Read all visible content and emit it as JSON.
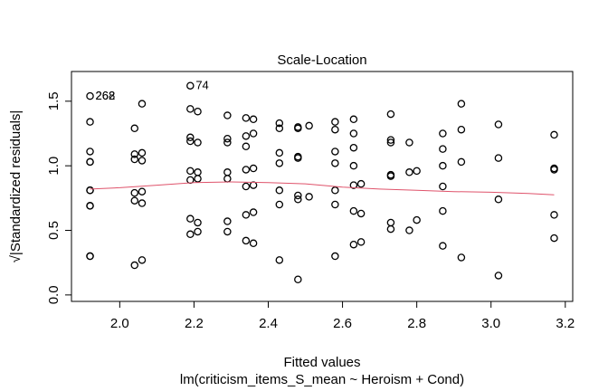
{
  "chart_data": {
    "type": "scatter",
    "title": "Scale-Location",
    "xlabel": "Fitted values",
    "subtitle": "lm(criticism_items_S_mean ~ Heroism + Cond)",
    "ylabel": "√|Standardized residuals|",
    "xlim": [
      1.87,
      3.22
    ],
    "ylim": [
      -0.05,
      1.73
    ],
    "x_ticks": [
      2.0,
      2.2,
      2.4,
      2.6,
      2.8,
      3.0,
      3.2
    ],
    "x_tick_labels": [
      "2.0",
      "2.2",
      "2.4",
      "2.6",
      "2.8",
      "3.0",
      "3.2"
    ],
    "y_ticks": [
      0.0,
      0.5,
      1.0,
      1.5
    ],
    "y_tick_labels": [
      "0.0",
      "0.5",
      "1.0",
      "1.5"
    ],
    "grid": false,
    "marker": "open-circle",
    "points": [
      [
        1.92,
        1.54
      ],
      [
        1.92,
        1.34
      ],
      [
        1.92,
        1.11
      ],
      [
        1.92,
        1.03
      ],
      [
        1.92,
        1.03
      ],
      [
        1.92,
        0.81
      ],
      [
        1.92,
        0.81
      ],
      [
        1.92,
        0.69
      ],
      [
        1.92,
        0.69
      ],
      [
        1.92,
        0.3
      ],
      [
        1.92,
        0.3
      ],
      [
        2.04,
        1.29
      ],
      [
        2.04,
        1.09
      ],
      [
        2.04,
        1.05
      ],
      [
        2.04,
        0.79
      ],
      [
        2.04,
        0.73
      ],
      [
        2.04,
        0.23
      ],
      [
        2.06,
        1.48
      ],
      [
        2.06,
        1.1
      ],
      [
        2.06,
        1.04
      ],
      [
        2.06,
        0.8
      ],
      [
        2.06,
        0.71
      ],
      [
        2.06,
        0.27
      ],
      [
        2.19,
        1.62
      ],
      [
        2.19,
        1.44
      ],
      [
        2.19,
        1.22
      ],
      [
        2.19,
        1.19
      ],
      [
        2.19,
        0.96
      ],
      [
        2.19,
        0.89
      ],
      [
        2.19,
        0.59
      ],
      [
        2.19,
        0.47
      ],
      [
        2.21,
        1.42
      ],
      [
        2.21,
        1.18
      ],
      [
        2.21,
        0.95
      ],
      [
        2.21,
        0.9
      ],
      [
        2.21,
        0.56
      ],
      [
        2.21,
        0.49
      ],
      [
        2.29,
        1.39
      ],
      [
        2.29,
        1.21
      ],
      [
        2.29,
        1.18
      ],
      [
        2.29,
        0.95
      ],
      [
        2.29,
        0.9
      ],
      [
        2.29,
        0.57
      ],
      [
        2.29,
        0.49
      ],
      [
        2.34,
        1.37
      ],
      [
        2.34,
        1.23
      ],
      [
        2.34,
        1.15
      ],
      [
        2.34,
        0.97
      ],
      [
        2.34,
        0.84
      ],
      [
        2.34,
        0.62
      ],
      [
        2.34,
        0.42
      ],
      [
        2.36,
        1.36
      ],
      [
        2.36,
        1.25
      ],
      [
        2.36,
        0.98
      ],
      [
        2.36,
        0.85
      ],
      [
        2.36,
        0.64
      ],
      [
        2.36,
        0.4
      ],
      [
        2.43,
        1.33
      ],
      [
        2.43,
        1.29
      ],
      [
        2.43,
        1.1
      ],
      [
        2.43,
        1.02
      ],
      [
        2.43,
        0.81
      ],
      [
        2.43,
        0.7
      ],
      [
        2.43,
        0.27
      ],
      [
        2.48,
        1.3
      ],
      [
        2.48,
        1.29
      ],
      [
        2.48,
        1.07
      ],
      [
        2.48,
        1.06
      ],
      [
        2.48,
        0.77
      ],
      [
        2.48,
        0.74
      ],
      [
        2.48,
        0.12
      ],
      [
        2.51,
        1.31
      ],
      [
        2.51,
        0.76
      ],
      [
        2.58,
        1.34
      ],
      [
        2.58,
        1.28
      ],
      [
        2.58,
        1.11
      ],
      [
        2.58,
        1.02
      ],
      [
        2.58,
        0.81
      ],
      [
        2.58,
        0.7
      ],
      [
        2.58,
        0.3
      ],
      [
        2.63,
        1.36
      ],
      [
        2.63,
        1.25
      ],
      [
        2.63,
        1.14
      ],
      [
        2.63,
        1.0
      ],
      [
        2.63,
        0.85
      ],
      [
        2.63,
        0.65
      ],
      [
        2.63,
        0.39
      ],
      [
        2.65,
        0.86
      ],
      [
        2.65,
        0.63
      ],
      [
        2.65,
        0.41
      ],
      [
        2.73,
        1.4
      ],
      [
        2.73,
        1.2
      ],
      [
        2.73,
        1.18
      ],
      [
        2.73,
        0.93
      ],
      [
        2.73,
        0.92
      ],
      [
        2.73,
        0.56
      ],
      [
        2.73,
        0.51
      ],
      [
        2.78,
        1.18
      ],
      [
        2.78,
        0.95
      ],
      [
        2.78,
        0.5
      ],
      [
        2.8,
        0.96
      ],
      [
        2.8,
        0.58
      ],
      [
        2.87,
        1.25
      ],
      [
        2.87,
        1.13
      ],
      [
        2.87,
        1.0
      ],
      [
        2.87,
        0.84
      ],
      [
        2.87,
        0.65
      ],
      [
        2.87,
        0.38
      ],
      [
        2.92,
        1.48
      ],
      [
        2.92,
        1.28
      ],
      [
        2.92,
        1.03
      ],
      [
        2.92,
        0.29
      ],
      [
        3.02,
        1.32
      ],
      [
        3.02,
        1.06
      ],
      [
        3.02,
        0.74
      ],
      [
        3.02,
        0.15
      ],
      [
        3.17,
        1.24
      ],
      [
        3.17,
        0.98
      ],
      [
        3.17,
        0.97
      ],
      [
        3.17,
        0.62
      ],
      [
        3.17,
        0.44
      ]
    ],
    "point_labels": [
      {
        "x": 1.92,
        "y": 1.54,
        "text": "262"
      },
      {
        "x": 1.92,
        "y": 1.54,
        "text": "268"
      },
      {
        "x": 2.19,
        "y": 1.62,
        "text": "74"
      }
    ],
    "smooth_line": {
      "color": "#df536b",
      "x": [
        1.92,
        2.0,
        2.1,
        2.2,
        2.3,
        2.4,
        2.5,
        2.6,
        2.7,
        2.8,
        2.9,
        3.0,
        3.1,
        3.17
      ],
      "y": [
        0.82,
        0.83,
        0.85,
        0.87,
        0.875,
        0.87,
        0.86,
        0.835,
        0.82,
        0.81,
        0.8,
        0.795,
        0.785,
        0.775
      ]
    }
  }
}
